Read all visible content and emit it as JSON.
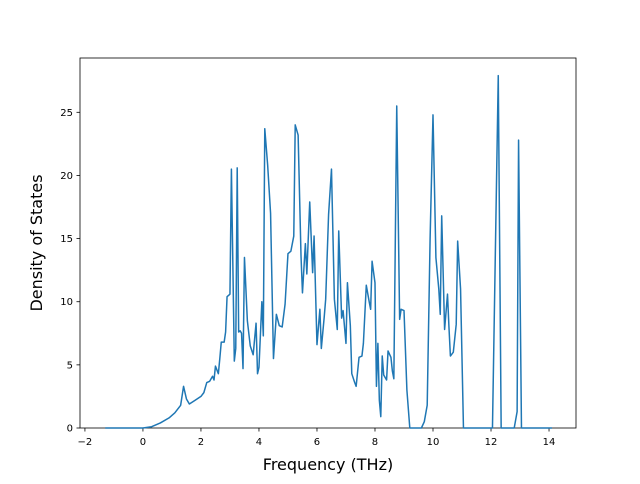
{
  "chart_data": {
    "type": "line",
    "x_label": "Frequency (THz)",
    "y_label": "Density of States",
    "xlim": [
      -2.17,
      14.93
    ],
    "ylim": [
      0,
      29.3
    ],
    "xticks": [
      {
        "value": -2,
        "label": "−2"
      },
      0,
      2,
      4,
      6,
      8,
      10,
      12,
      14
    ],
    "yticks": [
      0,
      5,
      10,
      15,
      20,
      25
    ],
    "grid": false,
    "series": [
      {
        "color": "#1f77b4",
        "x": [
          -1.3,
          0,
          0.3,
          0.6,
          0.9,
          1.1,
          1.3,
          1.4,
          1.5,
          1.6,
          1.8,
          2.0,
          2.1,
          2.2,
          2.3,
          2.4,
          2.45,
          2.5,
          2.6,
          2.65,
          2.7,
          2.8,
          2.85,
          2.9,
          3.0,
          3.05,
          3.15,
          3.2,
          3.25,
          3.3,
          3.35,
          3.4,
          3.45,
          3.5,
          3.6,
          3.7,
          3.8,
          3.9,
          3.95,
          4.0,
          4.1,
          4.15,
          4.2,
          4.3,
          4.4,
          4.5,
          4.6,
          4.7,
          4.8,
          4.9,
          5.0,
          5.1,
          5.2,
          5.25,
          5.35,
          5.45,
          5.5,
          5.6,
          5.65,
          5.75,
          5.8,
          5.85,
          5.9,
          6.0,
          6.1,
          6.15,
          6.25,
          6.3,
          6.4,
          6.5,
          6.6,
          6.7,
          6.75,
          6.85,
          6.9,
          7.0,
          7.05,
          7.15,
          7.2,
          7.3,
          7.35,
          7.45,
          7.55,
          7.6,
          7.7,
          7.8,
          7.85,
          7.9,
          8.0,
          8.05,
          8.1,
          8.15,
          8.2,
          8.25,
          8.3,
          8.4,
          8.45,
          8.55,
          8.6,
          8.65,
          8.75,
          8.85,
          8.9,
          9.0,
          9.1,
          9.2,
          9.6,
          9.7,
          9.8,
          9.9,
          10.0,
          10.1,
          10.2,
          10.25,
          10.3,
          10.4,
          10.5,
          10.55,
          10.6,
          10.7,
          10.8,
          10.85,
          10.95,
          11.05,
          12.05,
          12.25,
          12.35,
          12.8,
          12.9,
          12.95,
          13.05,
          14.1
        ],
        "values": [
          0,
          0,
          0.1,
          0.4,
          0.8,
          1.2,
          1.8,
          3.3,
          2.3,
          1.9,
          2.2,
          2.5,
          2.8,
          3.6,
          3.7,
          4.1,
          3.8,
          4.9,
          4.3,
          5.5,
          6.8,
          6.8,
          7.6,
          10.4,
          10.6,
          20.5,
          5.3,
          6.3,
          20.6,
          7.6,
          7.7,
          7.5,
          4.7,
          13.5,
          8.5,
          6.5,
          5.8,
          8.3,
          4.3,
          4.8,
          10.0,
          7.3,
          23.7,
          20.8,
          17.0,
          5.5,
          9.0,
          8.1,
          8.0,
          9.8,
          13.8,
          14.0,
          15.2,
          24.0,
          23.2,
          13.6,
          10.7,
          14.6,
          12.2,
          17.9,
          15.1,
          12.3,
          15.2,
          6.6,
          9.4,
          6.3,
          8.8,
          10.2,
          16.9,
          20.5,
          10.2,
          7.8,
          15.6,
          8.7,
          9.3,
          6.7,
          11.5,
          8.1,
          4.3,
          3.6,
          3.3,
          5.6,
          5.7,
          6.7,
          11.3,
          10.0,
          9.4,
          13.2,
          11.5,
          3.3,
          6.7,
          2.2,
          0.9,
          5.7,
          4.2,
          3.8,
          6.1,
          5.6,
          4.5,
          3.9,
          25.5,
          8.6,
          9.4,
          9.3,
          3.0,
          0,
          0,
          0.5,
          1.8,
          15.0,
          24.8,
          13.5,
          11.0,
          9.0,
          16.8,
          7.8,
          10.6,
          8.0,
          5.7,
          6.0,
          8.2,
          14.8,
          11.0,
          0,
          0,
          27.9,
          0,
          0,
          1.3,
          22.8,
          0,
          0
        ]
      }
    ]
  }
}
